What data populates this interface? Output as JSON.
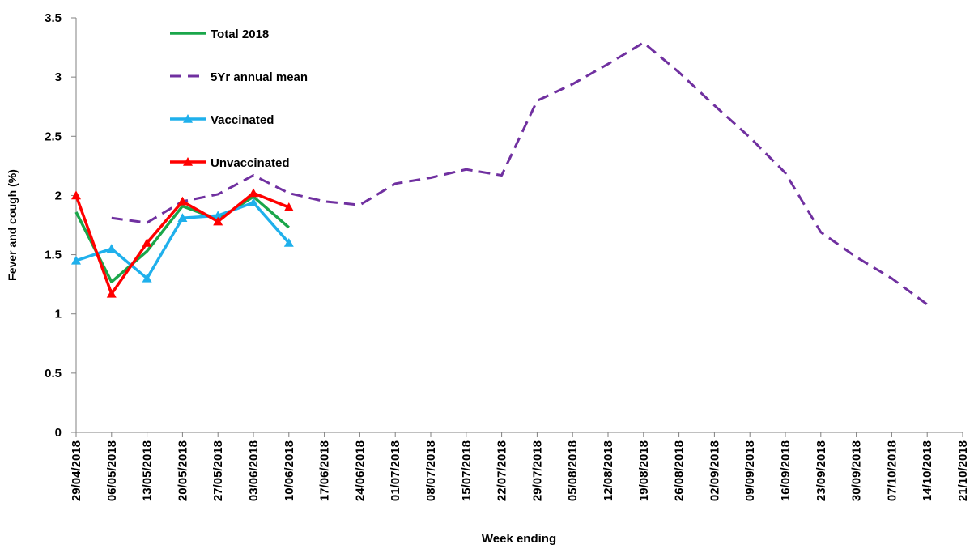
{
  "chart_data": {
    "type": "line",
    "y_label": "Fever and cough (%)",
    "x_label": "Week ending",
    "categories": [
      "29/04/2018",
      "06/05/2018",
      "13/05/2018",
      "20/05/2018",
      "27/05/2018",
      "03/06/2018",
      "10/06/2018",
      "17/06/2018",
      "24/06/2018",
      "01/07/2018",
      "08/07/2018",
      "15/07/2018",
      "22/07/2018",
      "29/07/2018",
      "05/08/2018",
      "12/08/2018",
      "19/08/2018",
      "26/08/2018",
      "02/09/2018",
      "09/09/2018",
      "16/09/2018",
      "23/09/2018",
      "30/09/2018",
      "07/10/2018",
      "14/10/2018",
      "21/10/2018"
    ],
    "series": [
      {
        "name": "Total 2018",
        "color": "#1aa64a",
        "dash": false,
        "marker": null,
        "values": [
          1.86,
          1.27,
          1.53,
          1.91,
          1.8,
          1.99,
          1.73,
          null,
          null,
          null,
          null,
          null,
          null,
          null,
          null,
          null,
          null,
          null,
          null,
          null,
          null,
          null,
          null,
          null,
          null,
          null
        ]
      },
      {
        "name": "5Yr annual mean",
        "color": "#7030a0",
        "dash": true,
        "marker": null,
        "values": [
          null,
          1.81,
          1.77,
          1.95,
          2.01,
          2.17,
          2.02,
          1.95,
          1.92,
          2.1,
          2.15,
          2.22,
          2.17,
          2.8,
          2.94,
          3.11,
          3.29,
          3.04,
          2.76,
          2.49,
          2.19,
          1.69,
          1.48,
          1.3,
          1.08,
          null
        ]
      },
      {
        "name": "Vaccinated",
        "color": "#1fb0ec",
        "dash": false,
        "marker": "triangle",
        "values": [
          1.45,
          1.55,
          1.3,
          1.81,
          1.83,
          1.94,
          1.6,
          null,
          null,
          null,
          null,
          null,
          null,
          null,
          null,
          null,
          null,
          null,
          null,
          null,
          null,
          null,
          null,
          null,
          null,
          null
        ]
      },
      {
        "name": "Unvaccinated",
        "color": "#ff0000",
        "dash": false,
        "marker": "triangle",
        "values": [
          2.0,
          1.17,
          1.6,
          1.95,
          1.78,
          2.02,
          1.9,
          null,
          null,
          null,
          null,
          null,
          null,
          null,
          null,
          null,
          null,
          null,
          null,
          null,
          null,
          null,
          null,
          null,
          null,
          null
        ]
      }
    ],
    "ylim": [
      0,
      3.5
    ],
    "yticks": [
      0,
      0.5,
      1,
      1.5,
      2,
      2.5,
      3,
      3.5
    ],
    "grid": false,
    "legend": "upper left"
  }
}
